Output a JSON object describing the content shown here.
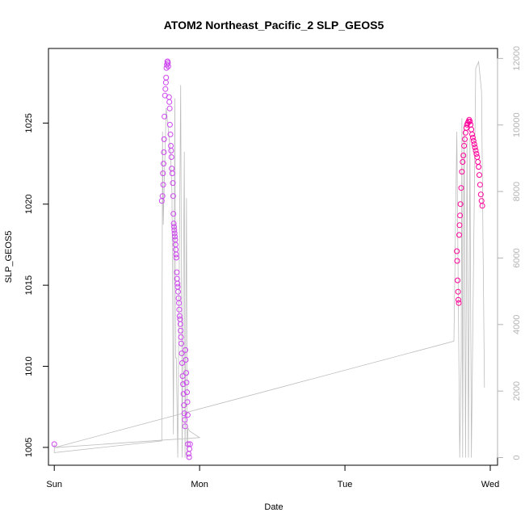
{
  "chart_data": {
    "type": "scatter",
    "title": "ATOM2 Northeast_Pacific_2 SLP_GEOS5",
    "xlabel": "Date",
    "ylabel": "SLP_GEOS5",
    "x_ticks": [
      "Sun",
      "Mon",
      "Tue",
      "Wed"
    ],
    "x_tick_values": [
      0,
      1,
      2,
      3
    ],
    "xlim": [
      -0.04,
      3.05
    ],
    "y_ticks": [
      1005,
      1010,
      1015,
      1020,
      1025
    ],
    "ylim": [
      1003.9,
      1029.6
    ],
    "y2_ticks": [
      0,
      2000,
      4000,
      6000,
      8000,
      10000,
      12000
    ],
    "y2lim": [
      -230,
      12300
    ],
    "colors": {
      "points_low": "#cc44ee",
      "points_high": "#ff0099",
      "secondary_line": "#bdbdbd",
      "right_axis": "#b3b3b3"
    },
    "series": [
      {
        "type": "points",
        "values": [
          [
            0.0,
            1005.2
          ],
          [
            0.74,
            1020.2
          ],
          [
            0.745,
            1020.5
          ],
          [
            0.75,
            1021.2
          ],
          [
            0.748,
            1021.9
          ],
          [
            0.752,
            1022.5
          ],
          [
            0.754,
            1023.2
          ],
          [
            0.756,
            1024.0
          ],
          [
            0.758,
            1025.4
          ],
          [
            0.762,
            1026.7
          ],
          [
            0.765,
            1027.1
          ],
          [
            0.768,
            1027.5
          ],
          [
            0.77,
            1027.8
          ],
          [
            0.772,
            1028.4
          ],
          [
            0.775,
            1028.6
          ],
          [
            0.778,
            1028.8
          ],
          [
            0.78,
            1028.8
          ],
          [
            0.782,
            1028.7
          ],
          [
            0.784,
            1028.5
          ],
          [
            0.79,
            1026.6
          ],
          [
            0.792,
            1026.3
          ],
          [
            0.794,
            1025.9
          ],
          [
            0.796,
            1024.9
          ],
          [
            0.799,
            1024.3
          ],
          [
            0.802,
            1023.6
          ],
          [
            0.804,
            1023.3
          ],
          [
            0.806,
            1022.9
          ],
          [
            0.808,
            1022.2
          ],
          [
            0.812,
            1021.9
          ],
          [
            0.816,
            1021.3
          ],
          [
            0.818,
            1020.5
          ],
          [
            0.82,
            1019.4
          ],
          [
            0.822,
            1018.8
          ],
          [
            0.824,
            1018.6
          ],
          [
            0.826,
            1018.4
          ],
          [
            0.828,
            1018.2
          ],
          [
            0.83,
            1018.0
          ],
          [
            0.832,
            1017.8
          ],
          [
            0.834,
            1017.5
          ],
          [
            0.836,
            1017.2
          ],
          [
            0.838,
            1016.9
          ],
          [
            0.84,
            1016.7
          ],
          [
            0.843,
            1015.8
          ],
          [
            0.845,
            1015.4
          ],
          [
            0.848,
            1015.1
          ],
          [
            0.85,
            1014.9
          ],
          [
            0.852,
            1014.6
          ],
          [
            0.855,
            1014.2
          ],
          [
            0.858,
            1013.9
          ],
          [
            0.86,
            1013.5
          ],
          [
            0.862,
            1013.1
          ],
          [
            0.865,
            1012.9
          ],
          [
            0.868,
            1012.6
          ],
          [
            0.87,
            1012.2
          ],
          [
            0.872,
            1011.8
          ],
          [
            0.874,
            1011.4
          ],
          [
            0.877,
            1010.8
          ],
          [
            0.88,
            1010.2
          ],
          [
            0.883,
            1009.4
          ],
          [
            0.886,
            1008.9
          ],
          [
            0.889,
            1008.3
          ],
          [
            0.892,
            1007.6
          ],
          [
            0.895,
            1007.1
          ],
          [
            0.898,
            1006.7
          ],
          [
            0.9,
            1006.3
          ],
          [
            0.902,
            1011.0
          ],
          [
            0.905,
            1010.4
          ],
          [
            0.908,
            1009.6
          ],
          [
            0.91,
            1009.0
          ],
          [
            0.913,
            1008.4
          ],
          [
            0.916,
            1007.8
          ],
          [
            0.918,
            1007.0
          ],
          [
            0.92,
            1005.2
          ],
          [
            0.924,
            1004.6
          ],
          [
            0.928,
            1004.4
          ],
          [
            0.93,
            1004.9
          ],
          [
            0.934,
            1005.2
          ],
          [
            2.77,
            1017.1
          ],
          [
            2.772,
            1016.5
          ],
          [
            2.775,
            1015.3
          ],
          [
            2.778,
            1014.6
          ],
          [
            2.78,
            1014.1
          ],
          [
            2.783,
            1013.9
          ],
          [
            2.786,
            1018.1
          ],
          [
            2.789,
            1018.7
          ],
          [
            2.792,
            1019.3
          ],
          [
            2.795,
            1020.0
          ],
          [
            2.8,
            1021.0
          ],
          [
            2.805,
            1022.0
          ],
          [
            2.81,
            1022.6
          ],
          [
            2.815,
            1023.0
          ],
          [
            2.82,
            1023.6
          ],
          [
            2.825,
            1024.0
          ],
          [
            2.83,
            1024.4
          ],
          [
            2.835,
            1024.7
          ],
          [
            2.84,
            1024.9
          ],
          [
            2.845,
            1025.0
          ],
          [
            2.85,
            1025.1
          ],
          [
            2.855,
            1025.2
          ],
          [
            2.86,
            1025.1
          ],
          [
            2.865,
            1024.9
          ],
          [
            2.87,
            1024.6
          ],
          [
            2.875,
            1024.3
          ],
          [
            2.88,
            1024.1
          ],
          [
            2.885,
            1023.9
          ],
          [
            2.89,
            1023.7
          ],
          [
            2.895,
            1023.5
          ],
          [
            2.9,
            1023.3
          ],
          [
            2.905,
            1023.1
          ],
          [
            2.91,
            1022.9
          ],
          [
            2.915,
            1022.6
          ],
          [
            2.92,
            1022.3
          ],
          [
            2.925,
            1021.8
          ],
          [
            2.93,
            1021.2
          ],
          [
            2.935,
            1020.6
          ],
          [
            2.94,
            1020.2
          ],
          [
            2.945,
            1019.9
          ]
        ]
      },
      {
        "type": "secondary_line",
        "values": [
          [
            0.0,
            400
          ],
          [
            0.0,
            150
          ],
          [
            0.74,
            500
          ],
          [
            0.745,
            9800
          ],
          [
            0.75,
            7000
          ],
          [
            0.77,
            10500
          ],
          [
            0.8,
            9200
          ],
          [
            0.81,
            8000
          ],
          [
            0.82,
            700
          ],
          [
            0.83,
            10800
          ],
          [
            0.835,
            3000
          ],
          [
            0.84,
            3000
          ],
          [
            0.85,
            0
          ],
          [
            0.87,
            11200
          ],
          [
            0.88,
            0
          ],
          [
            0.895,
            9200
          ],
          [
            0.9,
            0
          ],
          [
            0.91,
            7800
          ],
          [
            0.915,
            0
          ],
          [
            0.92,
            900
          ],
          [
            0.93,
            800
          ],
          [
            1.0,
            600
          ],
          [
            0.0,
            300
          ],
          [
            2.75,
            3500
          ],
          [
            2.77,
            9800
          ],
          [
            2.79,
            0
          ],
          [
            2.8,
            3000
          ],
          [
            2.805,
            10200
          ],
          [
            2.81,
            0
          ],
          [
            2.82,
            10000
          ],
          [
            2.83,
            0
          ],
          [
            2.84,
            9500
          ],
          [
            2.85,
            0
          ],
          [
            2.86,
            9600
          ],
          [
            2.87,
            0
          ],
          [
            2.9,
            11700
          ],
          [
            2.92,
            11900
          ],
          [
            2.94,
            11000
          ],
          [
            2.96,
            2100
          ]
        ]
      }
    ]
  }
}
